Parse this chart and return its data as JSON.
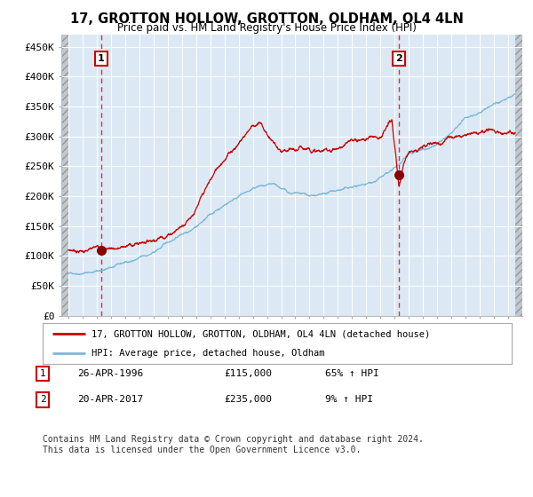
{
  "title": "17, GROTTON HOLLOW, GROTTON, OLDHAM, OL4 4LN",
  "subtitle": "Price paid vs. HM Land Registry's House Price Index (HPI)",
  "legend_line1": "17, GROTTON HOLLOW, GROTTON, OLDHAM, OL4 4LN (detached house)",
  "legend_line2": "HPI: Average price, detached house, Oldham",
  "annotation1_label": "1",
  "annotation1_date": "26-APR-1996",
  "annotation1_price": "£115,000",
  "annotation1_hpi": "65% ↑ HPI",
  "annotation2_label": "2",
  "annotation2_date": "20-APR-2017",
  "annotation2_price": "£235,000",
  "annotation2_hpi": "9% ↑ HPI",
  "footer": "Contains HM Land Registry data © Crown copyright and database right 2024.\nThis data is licensed under the Open Government Licence v3.0.",
  "hpi_line_color": "#7ab8d9",
  "price_line_color": "#cc0000",
  "dot_color": "#880000",
  "vline_color": "#dd3333",
  "plot_bg": "#dce9f5",
  "ylim": [
    0,
    470000
  ],
  "yticks": [
    0,
    50000,
    100000,
    150000,
    200000,
    250000,
    300000,
    350000,
    400000,
    450000
  ],
  "ytick_labels": [
    "£0",
    "£50K",
    "£100K",
    "£150K",
    "£200K",
    "£250K",
    "£300K",
    "£350K",
    "£400K",
    "£450K"
  ],
  "sale1_year": 1996.32,
  "sale1_price": 115000,
  "sale2_year": 2017.3,
  "sale2_price": 235000
}
